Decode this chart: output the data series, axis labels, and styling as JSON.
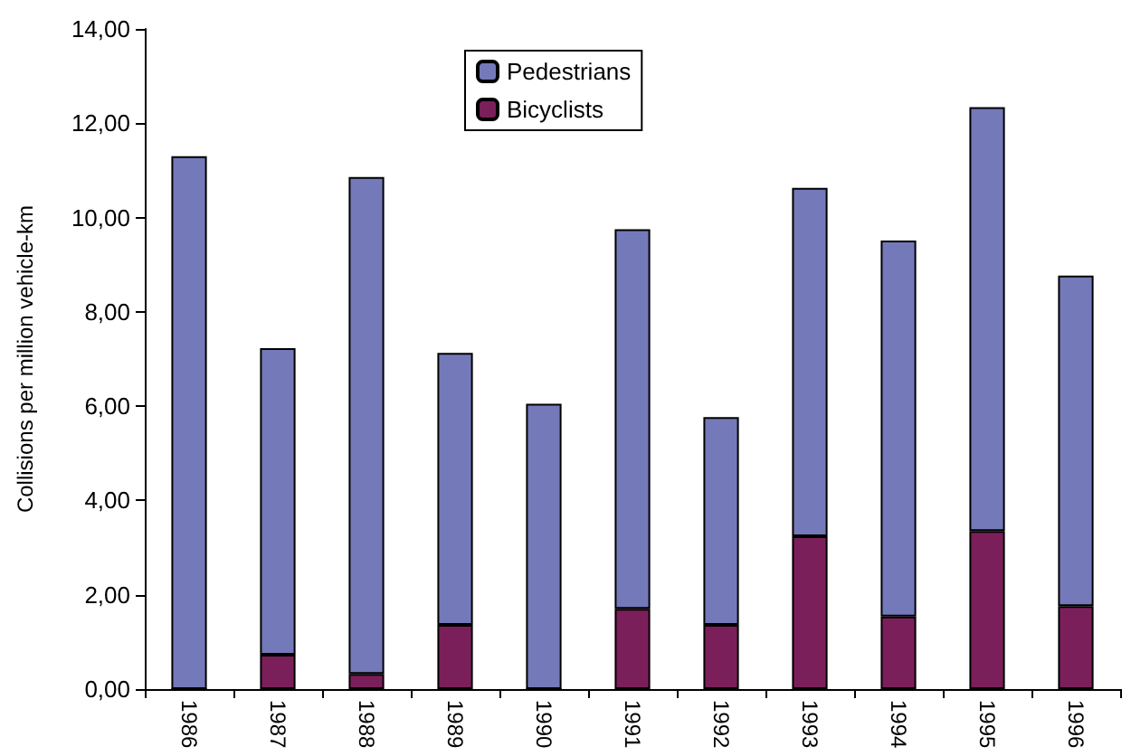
{
  "chart_data": {
    "type": "bar",
    "stacked": true,
    "ylabel": "Collisions per million vehicle-km",
    "categories": [
      "1986",
      "1987",
      "1988",
      "1989",
      "1990",
      "1991",
      "1992",
      "1993",
      "1994",
      "1995",
      "1996"
    ],
    "series": [
      {
        "name": "Bicyclists",
        "color": "#7b1f5a",
        "values": [
          0,
          0.73,
          0.32,
          1.36,
          0,
          1.7,
          1.36,
          3.24,
          1.54,
          3.35,
          1.76
        ]
      },
      {
        "name": "Pedestrians",
        "color": "#7479b9",
        "values": [
          11.3,
          6.5,
          10.54,
          5.77,
          6.05,
          8.05,
          4.41,
          7.39,
          7.97,
          8.99,
          7.01
        ]
      }
    ],
    "ylim": [
      0,
      14
    ],
    "yticks": [
      {
        "value": 0,
        "label": "0,00"
      },
      {
        "value": 2,
        "label": "2,00"
      },
      {
        "value": 4,
        "label": "4,00"
      },
      {
        "value": 6,
        "label": "6,00"
      },
      {
        "value": 8,
        "label": "8,00"
      },
      {
        "value": 10,
        "label": "10,00"
      },
      {
        "value": 12,
        "label": "12,00"
      },
      {
        "value": 14,
        "label": "14,00"
      }
    ],
    "grid": false,
    "legend": "top"
  }
}
